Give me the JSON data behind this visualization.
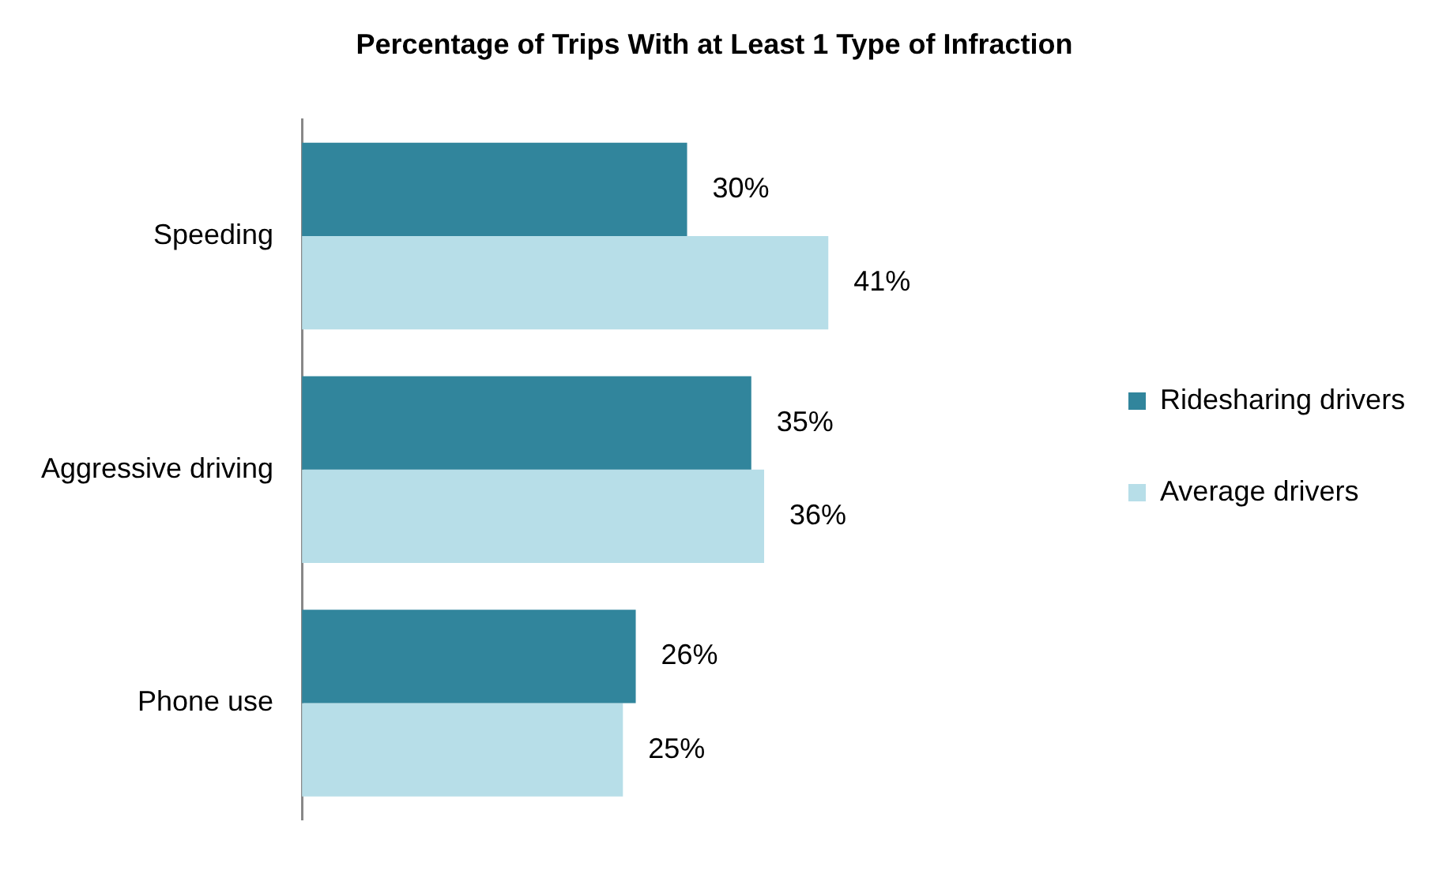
{
  "chart_data": {
    "type": "bar",
    "orientation": "horizontal",
    "title": "Percentage of Trips With at Least 1 Type of Infraction",
    "categories": [
      "Speeding",
      "Aggressive driving",
      "Phone use"
    ],
    "legend": "right",
    "grid": false,
    "series": [
      {
        "name": "Ridesharing drivers",
        "color": "#31859c",
        "values": [
          30,
          35,
          26
        ],
        "value_labels": [
          "30%",
          "35%",
          "26%"
        ]
      },
      {
        "name": "Average drivers",
        "color": "#b7dee8",
        "values": [
          41,
          36,
          25
        ],
        "value_labels": [
          "41%",
          "36%",
          "25%"
        ]
      }
    ]
  }
}
